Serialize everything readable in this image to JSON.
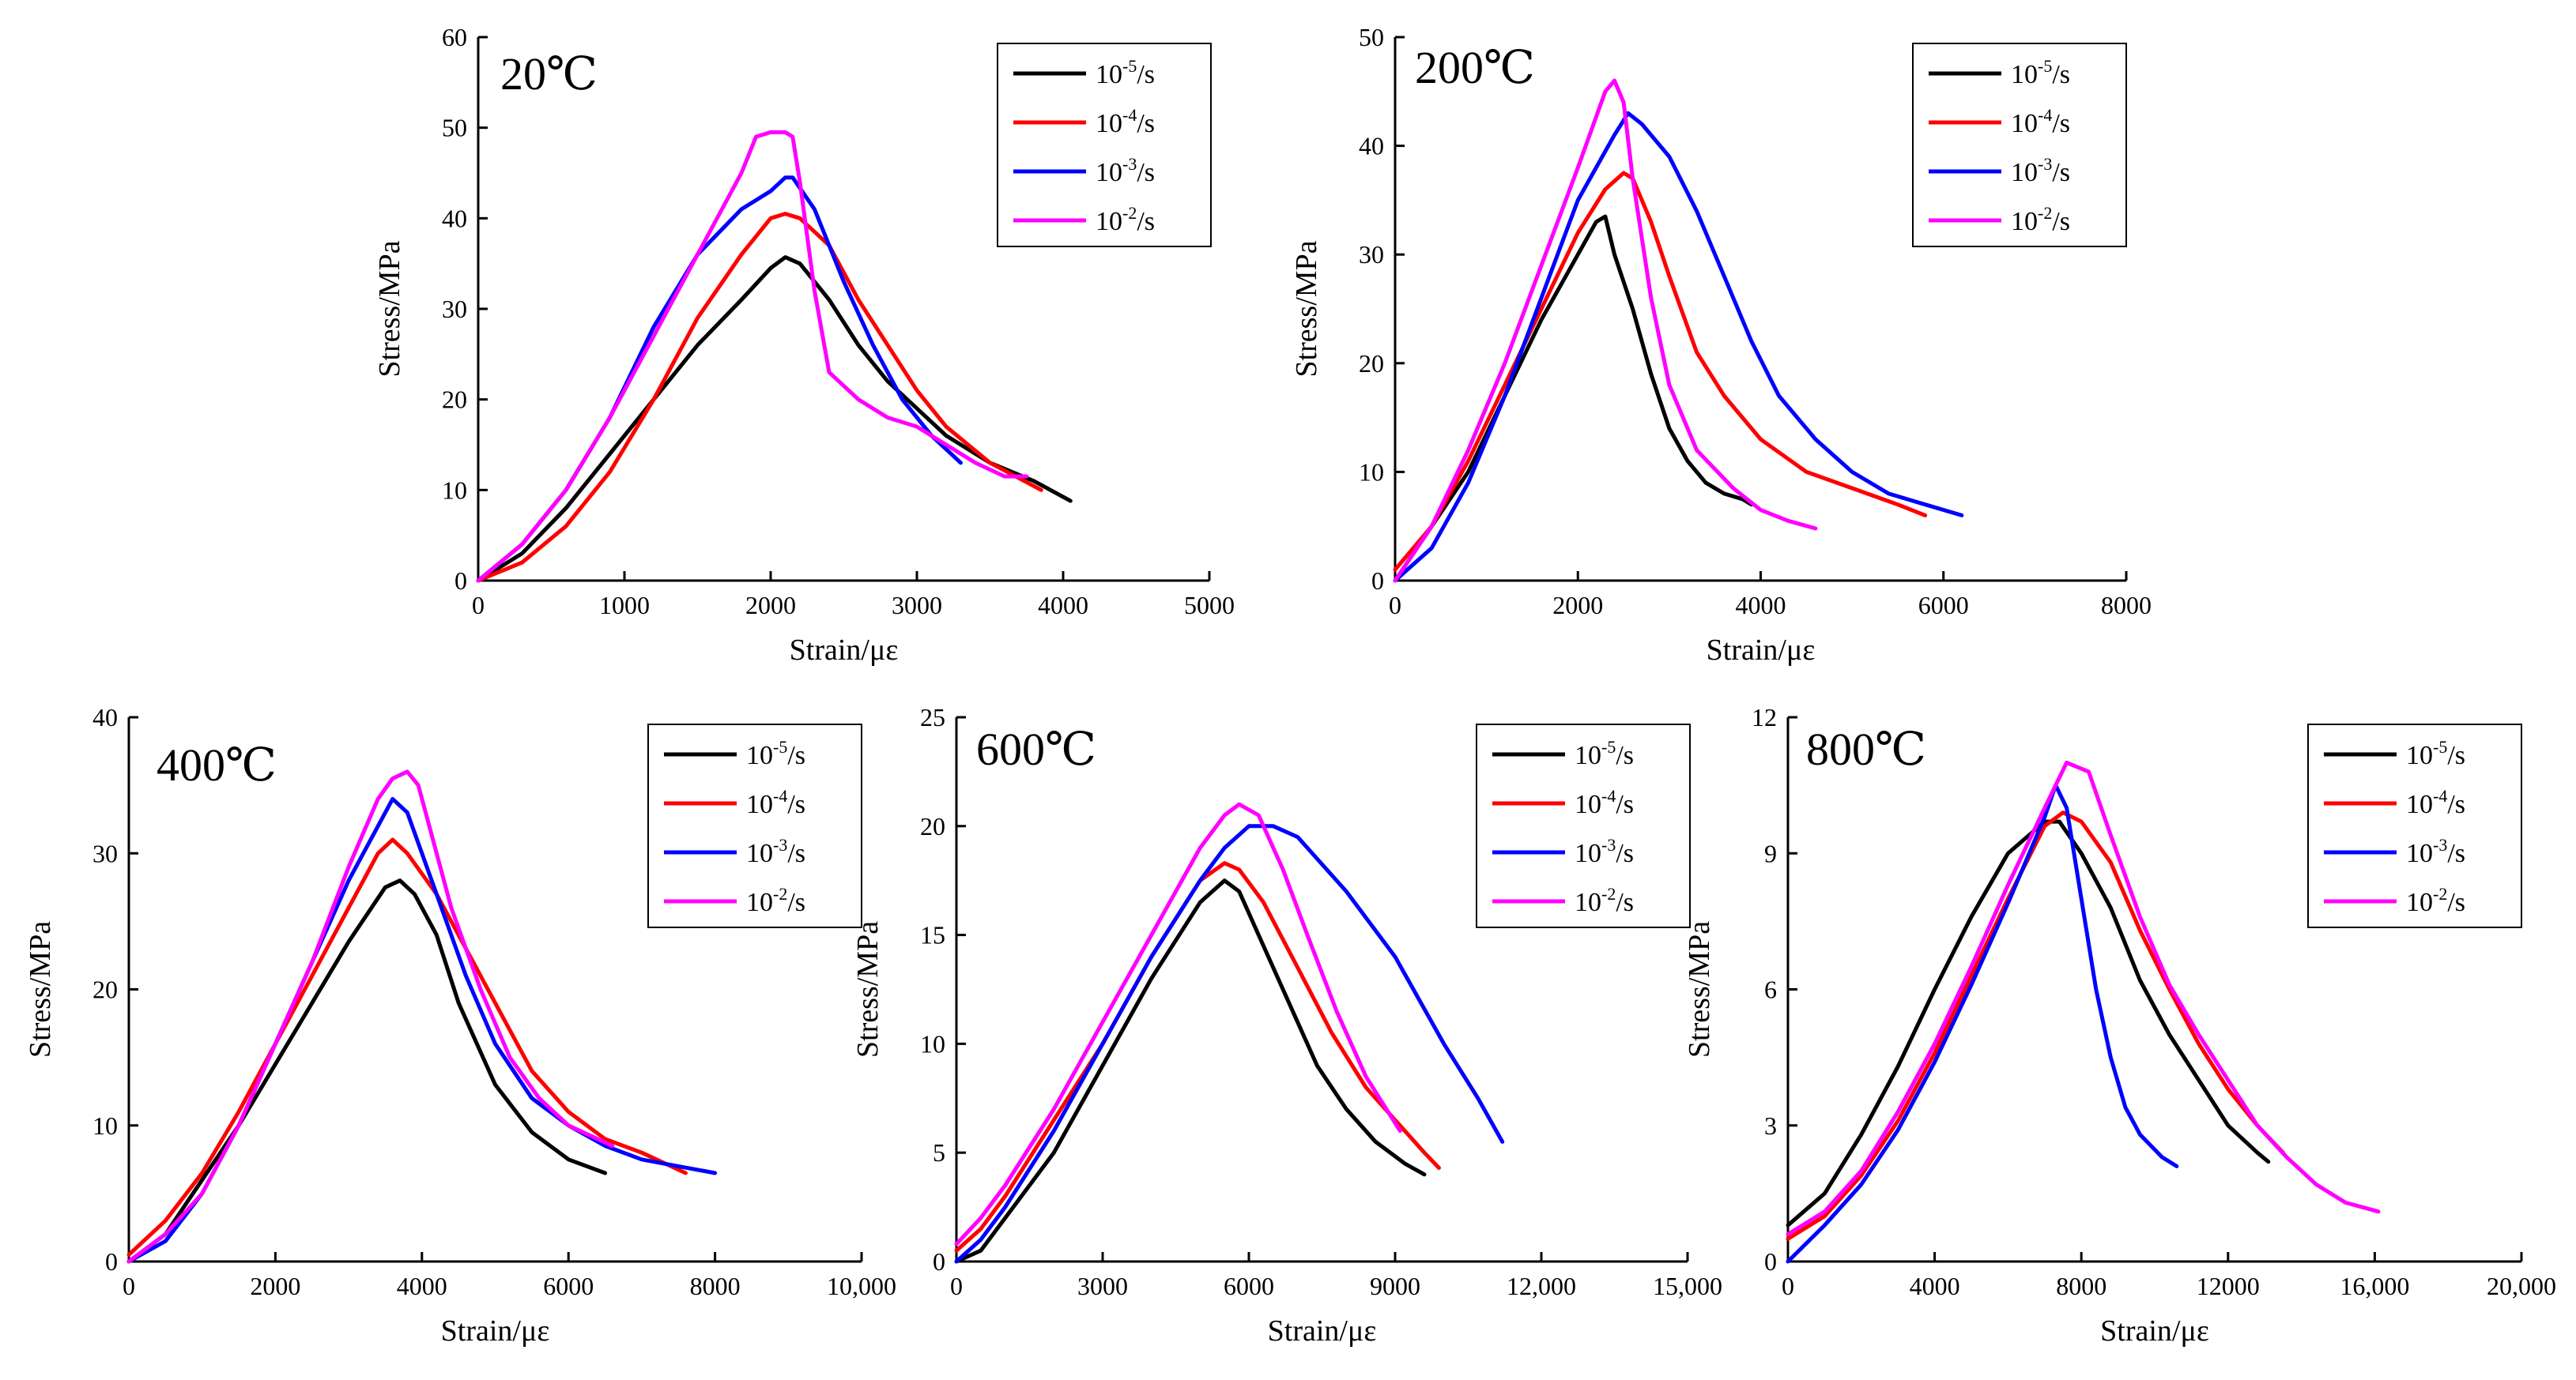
{
  "figure": {
    "legend_entries": [
      {
        "base": "10",
        "exp": "-5",
        "unit": "/s",
        "color": "#000000"
      },
      {
        "base": "10",
        "exp": "-4",
        "unit": "/s",
        "color": "#ff0000"
      },
      {
        "base": "10",
        "exp": "-3",
        "unit": "/s",
        "color": "#0000ff"
      },
      {
        "base": "10",
        "exp": "-2",
        "unit": "/s",
        "color": "#ff00ff"
      }
    ]
  },
  "chart_data": [
    {
      "type": "line",
      "title": "20℃",
      "xlabel": "Strain/με",
      "ylabel": "Stress/MPa",
      "xlim": [
        0,
        5000
      ],
      "ylim": [
        0,
        60
      ],
      "xticks": [
        0,
        1000,
        2000,
        3000,
        4000,
        5000
      ],
      "xtick_labels": [
        "0",
        "1000",
        "2000",
        "3000",
        "4000",
        "5000"
      ],
      "yticks": [
        0,
        10,
        20,
        30,
        40,
        50,
        60
      ],
      "ytick_labels": [
        "0",
        "10",
        "20",
        "30",
        "40",
        "50",
        "60"
      ],
      "legend_position": "top-right",
      "series": [
        {
          "name": "10-5/s",
          "color": "#000000",
          "x": [
            0,
            300,
            600,
            900,
            1200,
            1500,
            1800,
            2000,
            2100,
            2200,
            2400,
            2600,
            2800,
            3000,
            3200,
            3500,
            3800,
            4050
          ],
          "y": [
            0,
            3,
            8,
            14,
            20,
            26,
            31,
            34.5,
            35.7,
            35,
            31,
            26,
            22,
            19,
            16,
            13,
            11,
            8.8
          ]
        },
        {
          "name": "10-4/s",
          "color": "#ff0000",
          "x": [
            0,
            300,
            600,
            900,
            1200,
            1500,
            1800,
            2000,
            2100,
            2200,
            2400,
            2600,
            2800,
            3000,
            3200,
            3500,
            3850
          ],
          "y": [
            0,
            2,
            6,
            12,
            20,
            29,
            36,
            40,
            40.5,
            40,
            37,
            31,
            26,
            21,
            17,
            13,
            10
          ]
        },
        {
          "name": "10-3/s",
          "color": "#0000ff",
          "x": [
            0,
            300,
            600,
            900,
            1200,
            1500,
            1800,
            2000,
            2100,
            2150,
            2300,
            2500,
            2700,
            2900,
            3100,
            3300
          ],
          "y": [
            0,
            4,
            10,
            18,
            28,
            36,
            41,
            43,
            44.5,
            44.5,
            41,
            33,
            26,
            20,
            16,
            13
          ]
        },
        {
          "name": "10-2/s",
          "color": "#ff00ff",
          "x": [
            0,
            300,
            600,
            900,
            1200,
            1500,
            1800,
            1900,
            2000,
            2100,
            2150,
            2200,
            2300,
            2400,
            2600,
            2800,
            3000,
            3200,
            3400,
            3600,
            3750
          ],
          "y": [
            0,
            4,
            10,
            18,
            27,
            36,
            45,
            49,
            49.5,
            49.5,
            49,
            44,
            32,
            23,
            20,
            18,
            17,
            15,
            13,
            11.5,
            11.5
          ]
        }
      ]
    },
    {
      "type": "line",
      "title": "200℃",
      "xlabel": "Strain/με",
      "ylabel": "Stress/MPa",
      "xlim": [
        0,
        8000
      ],
      "ylim": [
        0,
        50
      ],
      "xticks": [
        0,
        2000,
        4000,
        6000,
        8000
      ],
      "xtick_labels": [
        "0",
        "2000",
        "4000",
        "6000",
        "8000"
      ],
      "yticks": [
        0,
        10,
        20,
        30,
        40,
        50
      ],
      "ytick_labels": [
        "0",
        "10",
        "20",
        "30",
        "40",
        "50"
      ],
      "legend_position": "top-right",
      "series": [
        {
          "name": "10-5/s",
          "color": "#000000",
          "x": [
            0,
            400,
            800,
            1200,
            1600,
            2000,
            2200,
            2300,
            2400,
            2600,
            2800,
            3000,
            3200,
            3400,
            3600,
            3800,
            3900
          ],
          "y": [
            0,
            5,
            10,
            17,
            24,
            30,
            33,
            33.5,
            30,
            25,
            19,
            14,
            11,
            9,
            8,
            7.5,
            7
          ]
        },
        {
          "name": "10-4/s",
          "color": "#ff0000",
          "x": [
            0,
            400,
            800,
            1200,
            1600,
            2000,
            2300,
            2500,
            2600,
            2800,
            3000,
            3300,
            3600,
            4000,
            4500,
            5000,
            5500,
            5800
          ],
          "y": [
            1,
            5,
            11,
            18,
            25,
            32,
            36,
            37.5,
            37,
            33,
            28,
            21,
            17,
            13,
            10,
            8.5,
            7,
            6
          ]
        },
        {
          "name": "10-3/s",
          "color": "#0000ff",
          "x": [
            0,
            400,
            800,
            1200,
            1600,
            2000,
            2400,
            2550,
            2700,
            3000,
            3300,
            3600,
            3900,
            4200,
            4600,
            5000,
            5400,
            5800,
            6200
          ],
          "y": [
            0,
            3,
            9,
            17,
            26,
            35,
            41,
            43,
            42,
            39,
            34,
            28,
            22,
            17,
            13,
            10,
            8,
            7,
            6
          ]
        },
        {
          "name": "10-2/s",
          "color": "#ff00ff",
          "x": [
            0,
            400,
            800,
            1200,
            1600,
            2000,
            2300,
            2400,
            2500,
            2600,
            2800,
            3000,
            3300,
            3700,
            4000,
            4300,
            4600
          ],
          "y": [
            0,
            5,
            12,
            20,
            29,
            38,
            45,
            46,
            44,
            37,
            26,
            18,
            12,
            8.5,
            6.5,
            5.5,
            4.8
          ]
        }
      ]
    },
    {
      "type": "line",
      "title": "400℃",
      "xlabel": "Strain/με",
      "ylabel": "Stress/MPa",
      "xlim": [
        0,
        10000
      ],
      "ylim": [
        0,
        40
      ],
      "xticks": [
        0,
        2000,
        4000,
        6000,
        8000,
        10000
      ],
      "xtick_labels": [
        "0",
        "2000",
        "4000",
        "6000",
        "8000",
        "10,000"
      ],
      "yticks": [
        0,
        10,
        20,
        30,
        40
      ],
      "ytick_labels": [
        "0",
        "10",
        "20",
        "30",
        "40"
      ],
      "legend_position": "top-right",
      "series": [
        {
          "name": "10-5/s",
          "color": "#000000",
          "x": [
            0,
            500,
            1000,
            1500,
            2000,
            2500,
            3000,
            3500,
            3700,
            3900,
            4200,
            4500,
            5000,
            5500,
            6000,
            6500
          ],
          "y": [
            0,
            2,
            6,
            10,
            14.5,
            19,
            23.5,
            27.5,
            28,
            27,
            24,
            19,
            13,
            9.5,
            7.5,
            6.5
          ]
        },
        {
          "name": "10-4/s",
          "color": "#ff0000",
          "x": [
            0,
            500,
            1000,
            1500,
            2000,
            2500,
            3000,
            3400,
            3600,
            3800,
            4200,
            4600,
            5000,
            5500,
            6000,
            6500,
            7000,
            7600
          ],
          "y": [
            0.5,
            3,
            6.5,
            11,
            16,
            21,
            26,
            30,
            31,
            30,
            27,
            23,
            19,
            14,
            11,
            9,
            8,
            6.5
          ]
        },
        {
          "name": "10-3/s",
          "color": "#0000ff",
          "x": [
            0,
            500,
            1000,
            1500,
            2000,
            2500,
            3000,
            3400,
            3600,
            3800,
            4200,
            4600,
            5000,
            5500,
            6000,
            6500,
            7000,
            7500,
            8000
          ],
          "y": [
            0,
            1.5,
            5,
            10,
            16,
            22,
            28,
            32,
            34,
            33,
            27,
            21,
            16,
            12,
            10,
            8.5,
            7.5,
            7,
            6.5
          ]
        },
        {
          "name": "10-2/s",
          "color": "#ff00ff",
          "x": [
            0,
            500,
            1000,
            1500,
            2000,
            2500,
            3000,
            3400,
            3600,
            3800,
            3950,
            4100,
            4400,
            4800,
            5200,
            5600,
            6000,
            6400,
            6600
          ],
          "y": [
            0,
            2,
            5,
            10,
            16,
            22,
            29,
            34,
            35.5,
            36,
            35,
            32,
            26,
            20,
            15,
            12,
            10,
            9,
            8.5
          ]
        }
      ]
    },
    {
      "type": "line",
      "title": "600℃",
      "xlabel": "Strain/με",
      "ylabel": "Stress/MPa",
      "xlim": [
        0,
        15000
      ],
      "ylim": [
        0,
        25
      ],
      "xticks": [
        0,
        3000,
        6000,
        9000,
        12000,
        15000
      ],
      "xtick_labels": [
        "0",
        "3000",
        "6000",
        "9000",
        "12,000",
        "15,000"
      ],
      "yticks": [
        0,
        5,
        10,
        15,
        20,
        25
      ],
      "ytick_labels": [
        "0",
        "5",
        "10",
        "15",
        "20",
        "25"
      ],
      "legend_position": "top-right",
      "series": [
        {
          "name": "10-5/s",
          "color": "#000000",
          "x": [
            0,
            500,
            1000,
            2000,
            3000,
            4000,
            5000,
            5500,
            5800,
            6200,
            6800,
            7400,
            8000,
            8600,
            9200,
            9600
          ],
          "y": [
            0,
            0.5,
            2,
            5,
            9,
            13,
            16.5,
            17.5,
            17,
            15,
            12,
            9,
            7,
            5.5,
            4.5,
            4
          ]
        },
        {
          "name": "10-4/s",
          "color": "#ff0000",
          "x": [
            0,
            500,
            1000,
            2000,
            3000,
            4000,
            5000,
            5500,
            5800,
            6300,
            7000,
            7700,
            8400,
            9000,
            9600,
            9900
          ],
          "y": [
            0.5,
            1.5,
            3,
            6.5,
            10,
            14,
            17.5,
            18.3,
            18,
            16.5,
            13.5,
            10.5,
            8,
            6.5,
            5,
            4.3
          ]
        },
        {
          "name": "10-3/s",
          "color": "#0000ff",
          "x": [
            0,
            500,
            1000,
            2000,
            3000,
            4000,
            5000,
            5500,
            6000,
            6500,
            7000,
            8000,
            9000,
            10000,
            10700,
            11200
          ],
          "y": [
            0,
            1,
            2.5,
            6,
            10,
            14,
            17.5,
            19,
            20,
            20,
            19.5,
            17,
            14,
            10,
            7.5,
            5.5
          ]
        },
        {
          "name": "10-2/s",
          "color": "#ff00ff",
          "x": [
            0,
            500,
            1000,
            2000,
            3000,
            4000,
            5000,
            5500,
            5800,
            6200,
            6700,
            7200,
            7800,
            8400,
            9100
          ],
          "y": [
            0.8,
            2,
            3.5,
            7,
            11,
            15,
            19,
            20.5,
            21,
            20.5,
            18,
            15,
            11.5,
            8.5,
            6
          ]
        }
      ]
    },
    {
      "type": "line",
      "title": "800℃",
      "xlabel": "Strain/με",
      "ylabel": "Stress/MPa",
      "xlim": [
        0,
        20000
      ],
      "ylim": [
        0,
        12
      ],
      "xticks": [
        0,
        4000,
        8000,
        12000,
        16000,
        20000
      ],
      "xtick_labels": [
        "0",
        "4000",
        "8000",
        "12000",
        "16,000",
        "20,000"
      ],
      "yticks": [
        0,
        3,
        6,
        9,
        12
      ],
      "ytick_labels": [
        "0",
        "3",
        "6",
        "9",
        "12"
      ],
      "legend_position": "top-right",
      "series": [
        {
          "name": "10-5/s",
          "color": "#000000",
          "x": [
            0,
            1000,
            2000,
            3000,
            4000,
            5000,
            6000,
            7000,
            7400,
            8000,
            8800,
            9600,
            10400,
            11200,
            12000,
            12800,
            13100
          ],
          "y": [
            0.8,
            1.5,
            2.8,
            4.3,
            6,
            7.6,
            9,
            9.7,
            9.7,
            9,
            7.8,
            6.2,
            5,
            4,
            3,
            2.4,
            2.2
          ]
        },
        {
          "name": "10-4/s",
          "color": "#ff0000",
          "x": [
            0,
            1000,
            2000,
            3000,
            4000,
            5000,
            6000,
            7000,
            7500,
            8000,
            8800,
            9600,
            10400,
            11200,
            12000,
            12800,
            13500
          ],
          "y": [
            0.5,
            1,
            1.9,
            3.1,
            4.6,
            6.3,
            8,
            9.6,
            9.9,
            9.7,
            8.8,
            7.3,
            6,
            4.8,
            3.8,
            3,
            2.4
          ]
        },
        {
          "name": "10-3/s",
          "color": "#0000ff",
          "x": [
            0,
            1000,
            2000,
            3000,
            4000,
            5000,
            6000,
            7000,
            7300,
            7600,
            8000,
            8400,
            8800,
            9200,
            9600,
            10200,
            10600
          ],
          "y": [
            0,
            0.8,
            1.7,
            2.9,
            4.4,
            6.1,
            7.9,
            9.8,
            10.5,
            10,
            8,
            6,
            4.5,
            3.4,
            2.8,
            2.3,
            2.1
          ]
        },
        {
          "name": "10-2/s",
          "color": "#ff00ff",
          "x": [
            0,
            1000,
            2000,
            3000,
            4000,
            5000,
            6000,
            7000,
            7600,
            8200,
            8800,
            9600,
            10400,
            11200,
            12000,
            12800,
            13600,
            14400,
            15200,
            16100
          ],
          "y": [
            0.6,
            1.1,
            2,
            3.3,
            4.8,
            6.5,
            8.3,
            10,
            11,
            10.8,
            9.4,
            7.6,
            6.1,
            5,
            4,
            3,
            2.3,
            1.7,
            1.3,
            1.1
          ]
        }
      ]
    }
  ]
}
